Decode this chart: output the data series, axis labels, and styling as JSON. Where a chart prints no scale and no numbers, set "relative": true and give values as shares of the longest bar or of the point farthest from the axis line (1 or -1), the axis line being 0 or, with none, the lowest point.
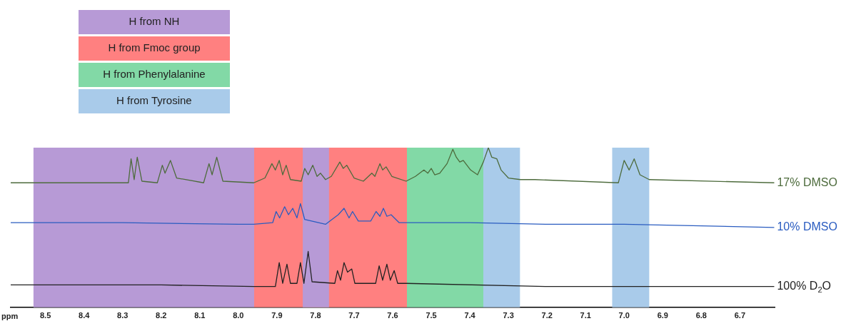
{
  "chart_data": {
    "type": "line",
    "relative": true,
    "xlabel": "ppm",
    "xlim": [
      8.59,
      6.61
    ],
    "xticks": [
      8.5,
      8.4,
      8.3,
      8.2,
      8.1,
      {
        "value": 8,
        "label": "8.0"
      },
      7.9,
      7.8,
      7.7,
      7.6,
      7.5,
      7.4,
      7.3,
      7.2,
      7.1,
      {
        "value": 7,
        "label": "7.0"
      },
      6.9,
      6.8,
      6.7
    ],
    "grid": false,
    "legend": "top left",
    "marker": "none",
    "line_style": "solid",
    "bands": [
      {
        "axis": "x",
        "from": 8.531,
        "to": 7.959,
        "label": "H from NH",
        "color": "#b79ad6"
      },
      {
        "axis": "x",
        "from": 7.959,
        "to": 7.563,
        "label": "H from Fmoc group",
        "color": "#ff8080"
      },
      {
        "axis": "x",
        "from": 7.563,
        "to": 7.365,
        "label": "H from Phenylalanine",
        "color": "#82d9a6"
      },
      {
        "axis": "x",
        "from": 7.365,
        "to": 7.27,
        "label": "H from Tyrosine",
        "color": "#a9cbea"
      },
      {
        "axis": "x",
        "from": 7.031,
        "to": 6.935,
        "label": null,
        "color": "#a9cbea"
      },
      {
        "axis": "x",
        "from": 7.833,
        "to": 7.765,
        "label": null,
        "color": "#b79ad6"
      }
    ],
    "series": [
      {
        "name": "17% DMSO",
        "color": "#4d6b3c",
        "x": [
          8.59,
          8.3,
          8.285,
          8.278,
          8.27,
          8.262,
          8.25,
          8.21,
          8.197,
          8.19,
          8.176,
          8.16,
          8.09,
          8.076,
          8.068,
          8.056,
          8.04,
          7.96,
          7.931,
          7.913,
          7.904,
          7.894,
          7.885,
          7.876,
          7.865,
          7.837,
          7.828,
          7.819,
          7.807,
          7.796,
          7.787,
          7.774,
          7.759,
          7.737,
          7.728,
          7.719,
          7.7,
          7.676,
          7.654,
          7.646,
          7.633,
          7.626,
          7.617,
          7.602,
          7.565,
          7.541,
          7.519,
          7.509,
          7.5,
          7.491,
          7.478,
          7.459,
          7.444,
          7.435,
          7.426,
          7.417,
          7.398,
          7.38,
          7.365,
          7.352,
          7.343,
          7.33,
          7.319,
          7.3,
          7.269,
          7.231,
          7.015,
          7.0,
          6.987,
          6.974,
          6.959,
          6.935,
          6.611
        ],
        "values": [
          0.78,
          0.78,
          0.78,
          0.93,
          0.8,
          0.94,
          0.79,
          0.78,
          0.89,
          0.84,
          0.92,
          0.81,
          0.78,
          0.9,
          0.83,
          0.94,
          0.79,
          0.78,
          0.81,
          0.9,
          0.86,
          0.92,
          0.83,
          0.89,
          0.8,
          0.79,
          0.87,
          0.83,
          0.89,
          0.82,
          0.84,
          0.8,
          0.82,
          0.91,
          0.87,
          0.89,
          0.81,
          0.79,
          0.84,
          0.82,
          0.9,
          0.86,
          0.88,
          0.82,
          0.79,
          0.82,
          0.86,
          0.84,
          0.87,
          0.83,
          0.84,
          0.9,
          0.99,
          0.94,
          0.91,
          0.92,
          0.86,
          0.83,
          0.91,
          1.0,
          0.94,
          0.93,
          0.86,
          0.81,
          0.8,
          0.8,
          0.78,
          0.92,
          0.86,
          0.93,
          0.83,
          0.8,
          0.78
        ]
      },
      {
        "name": "10% DMSO",
        "color": "#2a5cc0",
        "x": [
          8.59,
          8.3,
          8.0,
          7.96,
          7.911,
          7.902,
          7.893,
          7.88,
          7.87,
          7.859,
          7.848,
          7.839,
          7.828,
          7.774,
          7.741,
          7.726,
          7.713,
          7.704,
          7.689,
          7.657,
          7.643,
          7.633,
          7.624,
          7.615,
          7.604,
          7.583,
          7.4,
          7.2,
          7.0,
          6.8,
          6.611
        ],
        "values": [
          0.53,
          0.53,
          0.52,
          0.52,
          0.53,
          0.6,
          0.56,
          0.63,
          0.58,
          0.62,
          0.56,
          0.65,
          0.55,
          0.52,
          0.58,
          0.62,
          0.56,
          0.6,
          0.54,
          0.54,
          0.6,
          0.57,
          0.62,
          0.57,
          0.58,
          0.53,
          0.53,
          0.52,
          0.52,
          0.51,
          0.5
        ]
      },
      {
        "name": "100% D$_{2}$O",
        "color": "#222222",
        "x": [
          8.59,
          8.2,
          7.96,
          7.904,
          7.894,
          7.885,
          7.874,
          7.865,
          7.848,
          7.839,
          7.83,
          7.819,
          7.809,
          7.75,
          7.743,
          7.735,
          7.726,
          7.717,
          7.706,
          7.698,
          7.644,
          7.635,
          7.626,
          7.615,
          7.606,
          7.596,
          7.587,
          7.565,
          7.2,
          6.611
        ],
        "values": [
          0.14,
          0.14,
          0.13,
          0.13,
          0.28,
          0.15,
          0.27,
          0.15,
          0.15,
          0.28,
          0.15,
          0.35,
          0.16,
          0.15,
          0.23,
          0.17,
          0.28,
          0.22,
          0.24,
          0.15,
          0.15,
          0.26,
          0.17,
          0.27,
          0.17,
          0.23,
          0.15,
          0.15,
          0.13,
          0.13
        ]
      }
    ]
  }
}
